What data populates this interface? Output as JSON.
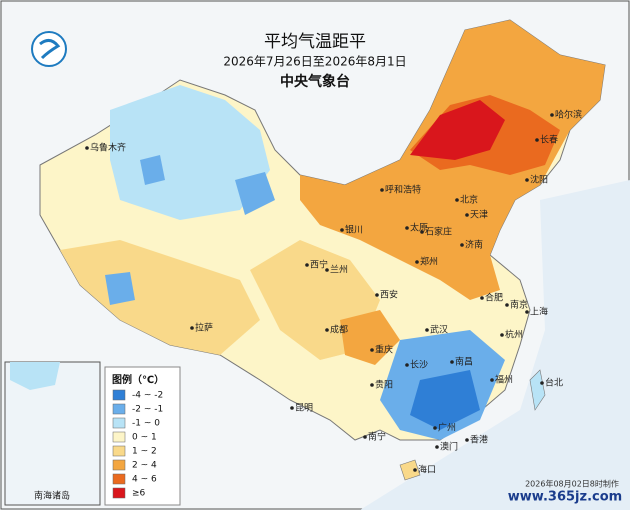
{
  "header": {
    "title": "平均气温距平",
    "period": "2026年7月26日至2026年8月1日",
    "agency": "中央气象台"
  },
  "legend": {
    "title": "图例（℃）",
    "items": [
      {
        "label": "-4 ~ -2",
        "color": "#2f7fd6"
      },
      {
        "label": "-2 ~ -1",
        "color": "#6aaeea"
      },
      {
        "label": "-1 ~ 0",
        "color": "#b8e3f6"
      },
      {
        "label": "0 ~ 1",
        "color": "#fdf5c8"
      },
      {
        "label": "1 ~ 2",
        "color": "#f9d98a"
      },
      {
        "label": "2 ~ 4",
        "color": "#f3a640"
      },
      {
        "label": "4 ~ 6",
        "color": "#ea6a1f"
      },
      {
        "label": "≥6",
        "color": "#d9161c"
      }
    ]
  },
  "cities": [
    "乌鲁木齐",
    "哈尔滨",
    "长春",
    "沈阳",
    "呼和浩特",
    "北京",
    "天津",
    "石家庄",
    "太原",
    "银川",
    "西宁",
    "兰州",
    "济南",
    "郑州",
    "西安",
    "合肥",
    "南京",
    "上海",
    "成都",
    "重庆",
    "武汉",
    "杭州",
    "拉萨",
    "长沙",
    "南昌",
    "福州",
    "贵阳",
    "昆明",
    "台北",
    "南宁",
    "广州",
    "香港",
    "澳门",
    "海口"
  ],
  "inset_label": "南海诸岛",
  "footer": "2026年08月02日8时制作",
  "watermark": "www.365jz.com"
}
